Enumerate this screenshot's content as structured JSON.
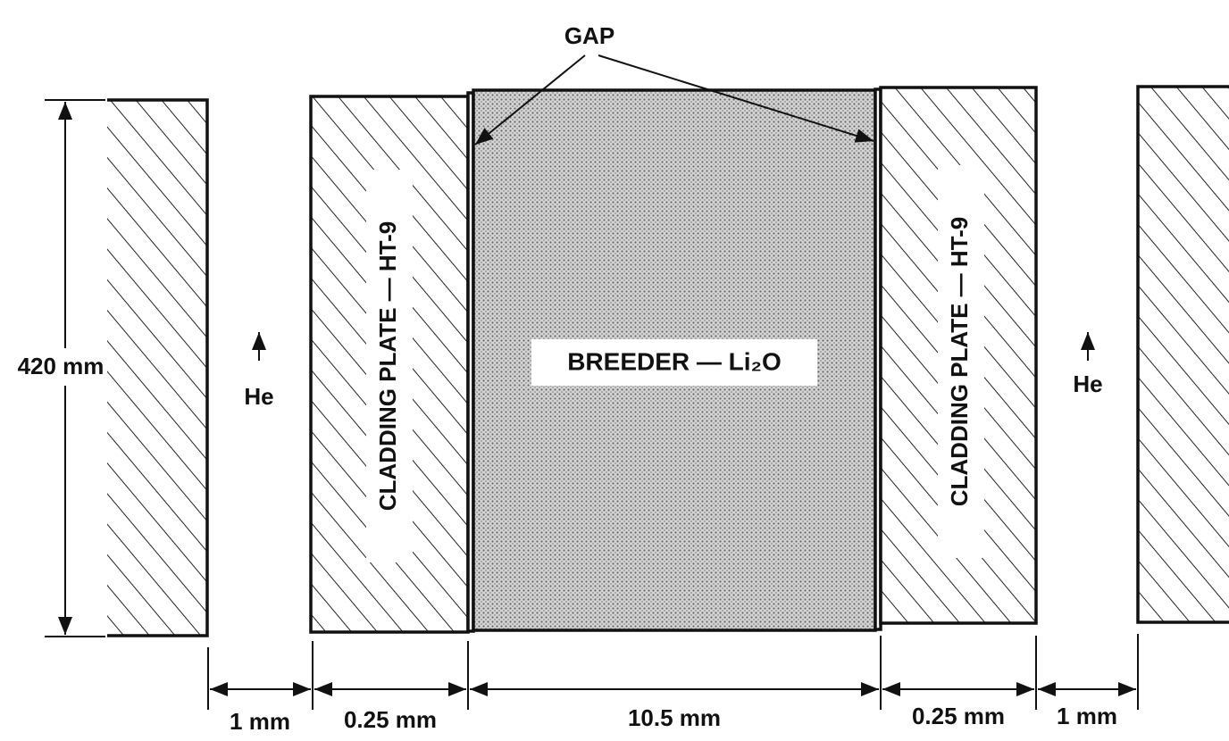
{
  "gap_label": "GAP",
  "height_label": "420 mm",
  "flow_labels": [
    "He",
    "He"
  ],
  "cladding_labels": [
    "CLADDING PLATE — HT-9",
    "CLADDING PLATE — HT-9"
  ],
  "breeder_label": "BREEDER — Li₂O",
  "dimensions": [
    "1 mm",
    "0.25 mm",
    "10.5 mm",
    "0.25 mm",
    "1 mm"
  ]
}
